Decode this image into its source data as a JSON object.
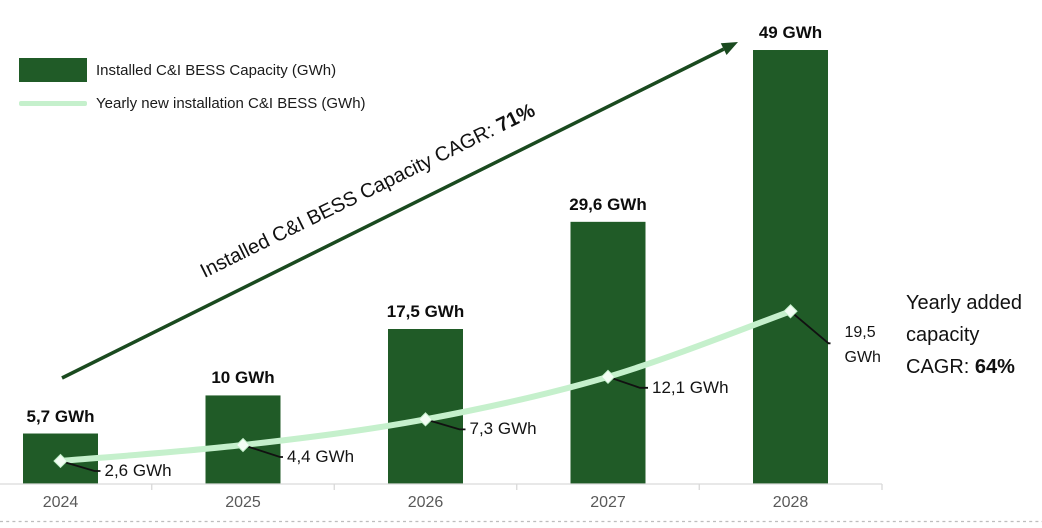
{
  "legend": {
    "items": [
      {
        "label": "Installed C&I BESS Capacity (GWh)",
        "swatch": "bar"
      },
      {
        "label": "Yearly new installation C&I BESS (GWh)",
        "swatch": "line"
      }
    ]
  },
  "annotations": {
    "capacity_cagr_prefix": "Installed C&I BESS Capacity CAGR: ",
    "capacity_cagr_value": "71%",
    "added_capacity_label": "Yearly added capacity",
    "added_capacity_cagr_prefix": "CAGR: ",
    "added_capacity_cagr_value": "64%"
  },
  "colors": {
    "bar_green": "#205b27",
    "line_green": "#c5f0cc",
    "marker_fill": "#f3fdf4",
    "arrow_green": "#1a4a1f",
    "axis_gray": "#d9d9d9",
    "dashed_gray": "#bdbdbd",
    "leader_black": "#111111",
    "year_gray": "#595959"
  },
  "chart_data": {
    "type": "bar+line combo",
    "categories": [
      "2024",
      "2025",
      "2026",
      "2027",
      "2028"
    ],
    "series": [
      {
        "name": "Installed C&I BESS Capacity (GWh)",
        "type": "bar",
        "values": [
          5.7,
          10,
          17.5,
          29.6,
          49
        ],
        "labels": [
          "5,7 GWh",
          "10 GWh",
          "17,5 GWh",
          "29,6 GWh",
          "49 GWh"
        ]
      },
      {
        "name": "Yearly new installation C&I BESS (GWh)",
        "type": "line",
        "values": [
          2.6,
          4.4,
          7.3,
          12.1,
          19.5
        ],
        "labels": [
          "2,6 GWh",
          "4,4 GWh",
          "7,3 GWh",
          "12,1 GWh",
          "19,5 GWh"
        ]
      }
    ],
    "ylim": [
      0,
      49
    ],
    "grid": false,
    "legend_position": "top-left",
    "annotations": [
      "Installed C&I BESS Capacity CAGR: 71%",
      "Yearly added capacity CAGR: 64%"
    ]
  }
}
